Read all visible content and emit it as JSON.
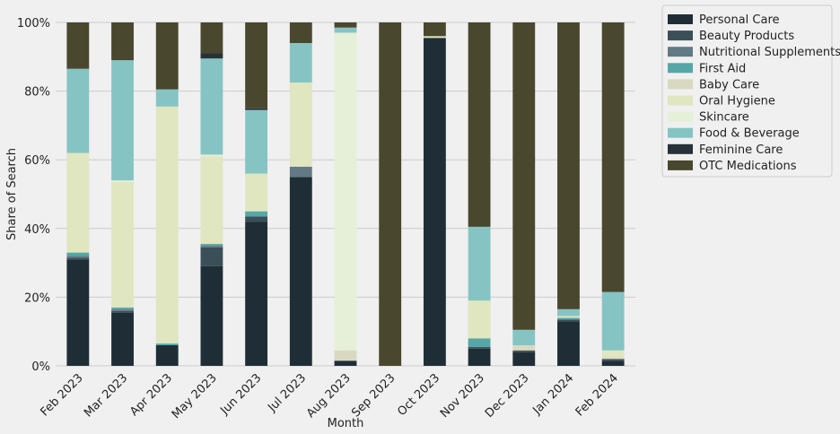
{
  "chart_data": {
    "type": "bar",
    "stacked": true,
    "title": "",
    "xlabel": "Month",
    "ylabel": "Share of Search",
    "ylim": [
      0,
      100
    ],
    "yticks": [
      0,
      20,
      40,
      60,
      80,
      100
    ],
    "ytick_format": "%",
    "grid": true,
    "legend_position": "outside-right-top",
    "categories": [
      "Feb 2023",
      "Mar 2023",
      "Apr 2023",
      "May 2023",
      "Jun 2023",
      "Jul 2023",
      "Aug 2023",
      "Sep 2023",
      "Oct 2023",
      "Nov 2023",
      "Dec 2023",
      "Jan 2024",
      "Feb 2024"
    ],
    "series": [
      {
        "name": "Personal Care",
        "color": "#1f2e36",
        "values": [
          31,
          15.5,
          6,
          29,
          42,
          55,
          1.5,
          0,
          95.5,
          5,
          4,
          13,
          1.5
        ]
      },
      {
        "name": "Beauty Products",
        "color": "#3a4f58",
        "values": [
          0.5,
          0.5,
          0,
          5.5,
          1.5,
          0,
          0,
          0,
          0,
          0.5,
          0.5,
          0.5,
          0.5
        ]
      },
      {
        "name": "Nutritional Supplements",
        "color": "#627a85",
        "values": [
          0.5,
          0.5,
          0,
          0.5,
          0,
          3,
          0,
          0,
          0,
          0,
          0,
          0,
          0
        ]
      },
      {
        "name": "First Aid",
        "color": "#56a7a7",
        "values": [
          1,
          0.5,
          0.5,
          0.5,
          1.5,
          0,
          0,
          0,
          0,
          2.5,
          0,
          0.5,
          0
        ]
      },
      {
        "name": "Baby Care",
        "color": "#d9d9c2",
        "values": [
          0,
          0,
          0,
          0,
          0,
          0,
          3,
          0,
          0,
          0,
          1.5,
          0,
          0.5
        ]
      },
      {
        "name": "Oral Hygiene",
        "color": "#dfe6c0",
        "values": [
          29,
          36.5,
          69,
          25.5,
          11,
          24.5,
          0,
          0,
          0.5,
          11,
          0,
          0.5,
          2
        ]
      },
      {
        "name": "Skincare",
        "color": "#e6efd8",
        "values": [
          0,
          0.5,
          0,
          0.5,
          0,
          0,
          92.5,
          0,
          0,
          0,
          0,
          0,
          0
        ]
      },
      {
        "name": "Food & Beverage",
        "color": "#86c4c4",
        "values": [
          24.5,
          35,
          5,
          28,
          18.5,
          11.5,
          1.5,
          0,
          0,
          21.5,
          4.5,
          2,
          17
        ]
      },
      {
        "name": "Feminine Care",
        "color": "#263238",
        "values": [
          0,
          0,
          0,
          1.5,
          0.5,
          0,
          0,
          0,
          0,
          0,
          0,
          0,
          0
        ]
      },
      {
        "name": "OTC Medications",
        "color": "#4a472f",
        "values": [
          13.5,
          11,
          19.5,
          9,
          25,
          6,
          1.5,
          100,
          4,
          59.5,
          89.5,
          83.5,
          78.5
        ]
      }
    ]
  }
}
